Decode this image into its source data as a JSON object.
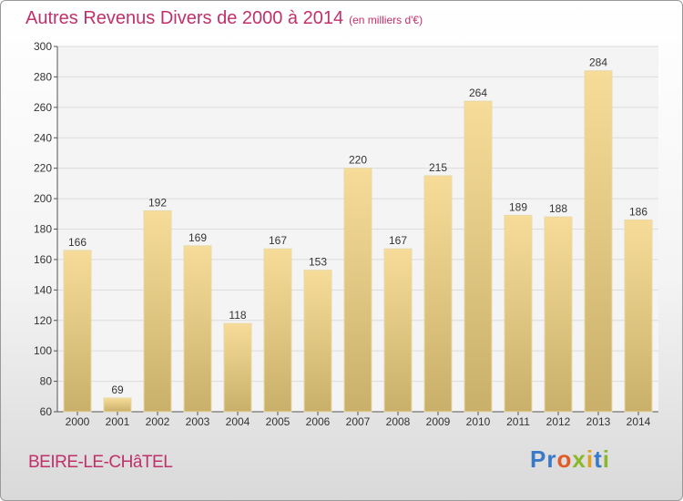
{
  "header": {
    "title": "Autres Revenus Divers de 2000 à 2014",
    "unit": "(en milliers d'€)"
  },
  "footer": {
    "place": "BEIRE-LE-CHâTEL",
    "logo": [
      "P",
      "r",
      "o",
      "x",
      "i",
      "t",
      "i"
    ]
  },
  "colors": {
    "title": "#c0306a",
    "bar_light": "#f6dc98",
    "bar_dark": "#c9b06a",
    "logo": [
      "#3a78c8",
      "#3a78c8",
      "#e05a2a",
      "#8ab82a",
      "#e0a020",
      "#3a78c8",
      "#8ab82a"
    ]
  },
  "chart_data": {
    "type": "bar",
    "categories": [
      "2000",
      "2001",
      "2002",
      "2003",
      "2004",
      "2005",
      "2006",
      "2007",
      "2008",
      "2009",
      "2010",
      "2011",
      "2012",
      "2013",
      "2014"
    ],
    "values": [
      166,
      69,
      192,
      169,
      118,
      167,
      153,
      220,
      167,
      215,
      264,
      189,
      188,
      284,
      186
    ],
    "ylim": [
      60,
      300
    ],
    "yticks": [
      60,
      80,
      100,
      120,
      140,
      160,
      180,
      200,
      220,
      240,
      260,
      280,
      300
    ],
    "grid": true
  }
}
